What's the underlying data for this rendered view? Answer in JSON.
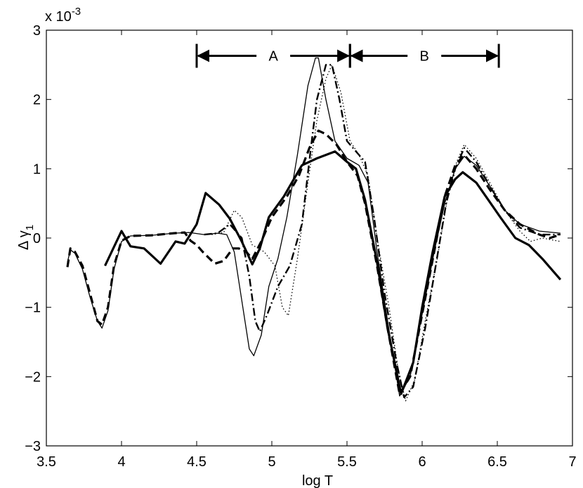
{
  "chart_data": {
    "type": "line",
    "xlabel": "log T",
    "ylabel": "Δ γ",
    "ylabel_subscript": "1",
    "y_multiplier": "x 10",
    "y_multiplier_exponent": "-3",
    "xlim": [
      3.5,
      7
    ],
    "ylim": [
      -3,
      3
    ],
    "x_ticks": [
      3.5,
      4,
      4.5,
      5,
      5.5,
      6,
      6.5,
      7
    ],
    "x_tick_labels": [
      "3.5",
      "4",
      "4.5",
      "5",
      "5.5",
      "6",
      "6.5",
      "7"
    ],
    "y_ticks": [
      -3,
      -2,
      -1,
      0,
      1,
      2,
      3
    ],
    "y_tick_labels": [
      "−3",
      "−2",
      "−1",
      "0",
      "1",
      "2",
      "3"
    ],
    "grid": false,
    "legend": "none",
    "annotations": [
      {
        "label": "A",
        "x_start": 4.5,
        "x_end": 5.52,
        "y": 2.63
      },
      {
        "label": "B",
        "x_start": 5.52,
        "x_end": 6.51,
        "y": 2.63
      }
    ],
    "series": [
      {
        "style": "thick-solid",
        "points": [
          [
            3.89,
            -0.4
          ],
          [
            4.0,
            0.1
          ],
          [
            4.06,
            -0.12
          ],
          [
            4.15,
            -0.15
          ],
          [
            4.26,
            -0.37
          ],
          [
            4.36,
            -0.05
          ],
          [
            4.42,
            -0.08
          ],
          [
            4.5,
            0.2
          ],
          [
            4.56,
            0.65
          ],
          [
            4.65,
            0.48
          ],
          [
            4.72,
            0.28
          ],
          [
            4.8,
            -0.05
          ],
          [
            4.87,
            -0.38
          ],
          [
            4.92,
            -0.15
          ],
          [
            4.98,
            0.3
          ],
          [
            5.08,
            0.6
          ],
          [
            5.2,
            1.05
          ],
          [
            5.3,
            1.15
          ],
          [
            5.42,
            1.25
          ],
          [
            5.5,
            1.1
          ],
          [
            5.56,
            1.0
          ],
          [
            5.62,
            0.55
          ],
          [
            5.7,
            -0.35
          ],
          [
            5.77,
            -1.3
          ],
          [
            5.86,
            -2.25
          ],
          [
            5.94,
            -1.8
          ],
          [
            6.0,
            -1.0
          ],
          [
            6.07,
            -0.2
          ],
          [
            6.15,
            0.6
          ],
          [
            6.22,
            0.85
          ],
          [
            6.27,
            0.95
          ],
          [
            6.36,
            0.8
          ],
          [
            6.44,
            0.55
          ],
          [
            6.52,
            0.3
          ],
          [
            6.62,
            0.0
          ],
          [
            6.71,
            -0.1
          ],
          [
            6.8,
            -0.3
          ],
          [
            6.92,
            -0.6
          ]
        ]
      },
      {
        "style": "thin-solid",
        "points": [
          [
            3.64,
            -0.35
          ],
          [
            3.66,
            -0.17
          ],
          [
            3.69,
            -0.22
          ],
          [
            3.74,
            -0.45
          ],
          [
            3.79,
            -0.85
          ],
          [
            3.84,
            -1.2
          ],
          [
            3.87,
            -1.3
          ],
          [
            3.91,
            -1.05
          ],
          [
            3.95,
            -0.45
          ],
          [
            4.0,
            -0.05
          ],
          [
            4.06,
            0.03
          ],
          [
            4.2,
            0.04
          ],
          [
            4.35,
            0.07
          ],
          [
            4.45,
            0.08
          ],
          [
            4.55,
            0.05
          ],
          [
            4.64,
            0.07
          ],
          [
            4.7,
            0.05
          ],
          [
            4.75,
            -0.2
          ],
          [
            4.8,
            -0.9
          ],
          [
            4.85,
            -1.6
          ],
          [
            4.88,
            -1.7
          ],
          [
            4.93,
            -1.4
          ],
          [
            4.98,
            -0.7
          ],
          [
            5.04,
            -0.3
          ],
          [
            5.1,
            0.3
          ],
          [
            5.17,
            1.2
          ],
          [
            5.24,
            2.2
          ],
          [
            5.29,
            2.6
          ],
          [
            5.31,
            2.6
          ],
          [
            5.36,
            2.0
          ],
          [
            5.42,
            1.4
          ],
          [
            5.5,
            1.15
          ],
          [
            5.58,
            1.05
          ],
          [
            5.64,
            0.8
          ],
          [
            5.7,
            -0.2
          ],
          [
            5.77,
            -1.2
          ],
          [
            5.85,
            -2.28
          ],
          [
            5.92,
            -2.0
          ],
          [
            6.0,
            -1.1
          ],
          [
            6.08,
            -0.2
          ],
          [
            6.15,
            0.5
          ],
          [
            6.22,
            1.0
          ],
          [
            6.28,
            1.18
          ],
          [
            6.36,
            1.05
          ],
          [
            6.45,
            0.75
          ],
          [
            6.55,
            0.4
          ],
          [
            6.65,
            0.2
          ],
          [
            6.78,
            0.1
          ],
          [
            6.92,
            0.07
          ]
        ]
      },
      {
        "style": "dashed",
        "points": [
          [
            3.64,
            -0.42
          ],
          [
            3.66,
            -0.15
          ],
          [
            3.69,
            -0.2
          ],
          [
            3.74,
            -0.4
          ],
          [
            3.79,
            -0.8
          ],
          [
            3.84,
            -1.2
          ],
          [
            3.87,
            -1.25
          ],
          [
            3.91,
            -1.0
          ],
          [
            3.95,
            -0.4
          ],
          [
            4.0,
            -0.04
          ],
          [
            4.06,
            0.03
          ],
          [
            4.2,
            0.04
          ],
          [
            4.35,
            0.07
          ],
          [
            4.42,
            0.08
          ],
          [
            4.46,
            -0.04
          ],
          [
            4.5,
            -0.1
          ],
          [
            4.54,
            -0.2
          ],
          [
            4.62,
            -0.37
          ],
          [
            4.68,
            -0.33
          ],
          [
            4.74,
            -0.15
          ],
          [
            4.78,
            -0.15
          ],
          [
            4.83,
            -0.2
          ],
          [
            4.87,
            -0.3
          ],
          [
            4.93,
            -0.05
          ],
          [
            5.0,
            0.3
          ],
          [
            5.1,
            0.6
          ],
          [
            5.18,
            0.9
          ],
          [
            5.25,
            1.3
          ],
          [
            5.31,
            1.55
          ],
          [
            5.36,
            1.5
          ],
          [
            5.43,
            1.35
          ],
          [
            5.5,
            1.1
          ],
          [
            5.57,
            0.9
          ],
          [
            5.62,
            0.5
          ],
          [
            5.7,
            -0.4
          ],
          [
            5.77,
            -1.3
          ],
          [
            5.85,
            -2.25
          ],
          [
            5.92,
            -2.0
          ],
          [
            6.0,
            -1.1
          ],
          [
            6.08,
            -0.2
          ],
          [
            6.15,
            0.6
          ],
          [
            6.22,
            1.05
          ],
          [
            6.28,
            1.2
          ],
          [
            6.36,
            1.0
          ],
          [
            6.45,
            0.7
          ],
          [
            6.55,
            0.4
          ],
          [
            6.65,
            0.2
          ],
          [
            6.78,
            0.05
          ],
          [
            6.85,
            0.0
          ],
          [
            6.92,
            0.05
          ]
        ]
      },
      {
        "style": "dash-dot",
        "points": [
          [
            4.55,
            0.05
          ],
          [
            4.64,
            0.07
          ],
          [
            4.72,
            0.2
          ],
          [
            4.8,
            0.0
          ],
          [
            4.85,
            -0.55
          ],
          [
            4.89,
            -1.2
          ],
          [
            4.92,
            -1.35
          ],
          [
            4.97,
            -1.1
          ],
          [
            5.04,
            -0.7
          ],
          [
            5.12,
            -0.4
          ],
          [
            5.2,
            0.2
          ],
          [
            5.26,
            1.3
          ],
          [
            5.3,
            2.0
          ],
          [
            5.36,
            2.5
          ],
          [
            5.4,
            2.5
          ],
          [
            5.45,
            2.0
          ],
          [
            5.5,
            1.4
          ],
          [
            5.58,
            1.2
          ],
          [
            5.62,
            1.1
          ],
          [
            5.68,
            0.3
          ],
          [
            5.75,
            -0.8
          ],
          [
            5.83,
            -1.8
          ],
          [
            5.88,
            -2.3
          ],
          [
            5.94,
            -2.15
          ],
          [
            6.02,
            -1.3
          ],
          [
            6.09,
            -0.4
          ],
          [
            6.16,
            0.5
          ],
          [
            6.22,
            1.0
          ],
          [
            6.28,
            1.3
          ],
          [
            6.36,
            1.1
          ],
          [
            6.45,
            0.75
          ],
          [
            6.55,
            0.4
          ],
          [
            6.65,
            0.15
          ],
          [
            6.78,
            0.05
          ],
          [
            6.92,
            0.05
          ]
        ]
      },
      {
        "style": "dotted",
        "points": [
          [
            4.6,
            0.05
          ],
          [
            4.68,
            0.08
          ],
          [
            4.75,
            0.4
          ],
          [
            4.8,
            0.3
          ],
          [
            4.87,
            -0.1
          ],
          [
            4.95,
            -0.2
          ],
          [
            5.02,
            -0.4
          ],
          [
            5.07,
            -1.0
          ],
          [
            5.11,
            -1.12
          ],
          [
            5.17,
            -0.3
          ],
          [
            5.24,
            0.8
          ],
          [
            5.3,
            1.7
          ],
          [
            5.36,
            2.3
          ],
          [
            5.4,
            2.5
          ],
          [
            5.46,
            2.1
          ],
          [
            5.52,
            1.4
          ],
          [
            5.58,
            1.2
          ],
          [
            5.64,
            0.9
          ],
          [
            5.7,
            0.0
          ],
          [
            5.78,
            -1.0
          ],
          [
            5.84,
            -1.9
          ],
          [
            5.89,
            -2.35
          ],
          [
            5.95,
            -2.05
          ],
          [
            6.02,
            -1.2
          ],
          [
            6.1,
            -0.3
          ],
          [
            6.17,
            0.6
          ],
          [
            6.23,
            1.1
          ],
          [
            6.28,
            1.35
          ],
          [
            6.36,
            1.15
          ],
          [
            6.45,
            0.8
          ],
          [
            6.55,
            0.4
          ],
          [
            6.65,
            0.1
          ],
          [
            6.72,
            -0.05
          ],
          [
            6.8,
            0.0
          ],
          [
            6.92,
            -0.05
          ]
        ]
      }
    ]
  }
}
